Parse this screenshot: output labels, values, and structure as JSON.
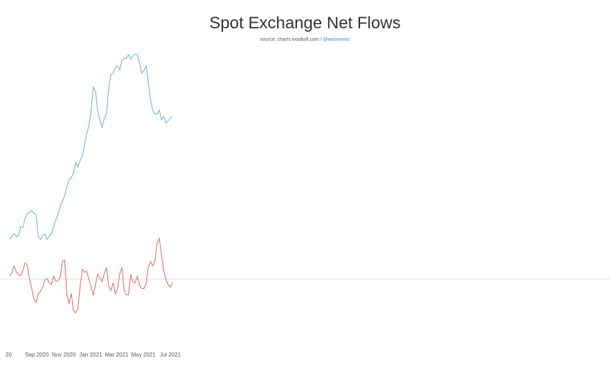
{
  "chart_data": {
    "type": "line",
    "title": "Spot Exchange Net Flows",
    "subtitle_prefix": "source: charts.woobull.com / ",
    "subtitle_handle": "@woonomic",
    "x_tick_labels": [
      "20",
      "Sep 2020",
      "Nov 2020",
      "Jan 2021",
      "Mar 2021",
      "May 2021",
      "Jul 2021"
    ],
    "x_tick_dates": [
      "2020-07-01",
      "2020-09-01",
      "2020-11-01",
      "2021-01-01",
      "2021-03-01",
      "2021-05-01",
      "2021-07-01"
    ],
    "grid": false,
    "colors": {
      "upper": "#6bb5d9",
      "lower": "#e06f5e",
      "zero_line": "#dddddd"
    },
    "series": [
      {
        "axis": "upper",
        "x": [
          "2020-07-01",
          "2020-07-06",
          "2020-07-11",
          "2020-07-16",
          "2020-07-21",
          "2020-07-26",
          "2020-07-31",
          "2020-08-05",
          "2020-08-10",
          "2020-08-15",
          "2020-08-20",
          "2020-08-25",
          "2020-08-30",
          "2020-09-04",
          "2020-09-09",
          "2020-09-14",
          "2020-09-19",
          "2020-09-24",
          "2020-09-29",
          "2020-10-04",
          "2020-10-09",
          "2020-10-14",
          "2020-10-19",
          "2020-10-24",
          "2020-10-29",
          "2020-11-03",
          "2020-11-08",
          "2020-11-13",
          "2020-11-18",
          "2020-11-23",
          "2020-11-28",
          "2020-12-03",
          "2020-12-08",
          "2020-12-13",
          "2020-12-18",
          "2020-12-23",
          "2020-12-28",
          "2021-01-02",
          "2021-01-07",
          "2021-01-12",
          "2021-01-17",
          "2021-01-22",
          "2021-01-27",
          "2021-02-01",
          "2021-02-06",
          "2021-02-11",
          "2021-02-16",
          "2021-02-21",
          "2021-02-26",
          "2021-03-03",
          "2021-03-08",
          "2021-03-13",
          "2021-03-18",
          "2021-03-23",
          "2021-03-28",
          "2021-04-02",
          "2021-04-07",
          "2021-04-12",
          "2021-04-17",
          "2021-04-22",
          "2021-04-27",
          "2021-05-02",
          "2021-05-07",
          "2021-05-12",
          "2021-05-17",
          "2021-05-22",
          "2021-05-27",
          "2021-06-01",
          "2021-06-06",
          "2021-06-11",
          "2021-06-16",
          "2021-06-21",
          "2021-06-26",
          "2021-07-01",
          "2021-07-06"
        ],
        "values": [
          2,
          5,
          6,
          4,
          5,
          12,
          13,
          20,
          24,
          26,
          26,
          24,
          23,
          3,
          2,
          5,
          6,
          3,
          5,
          7,
          14,
          18,
          23,
          30,
          33,
          39,
          46,
          52,
          55,
          58,
          67,
          64,
          68,
          72,
          82,
          90,
          98,
          110,
          130,
          128,
          110,
          103,
          97,
          103,
          108,
          128,
          140,
          142,
          146,
          148,
          146,
          153,
          155,
          155,
          157,
          154,
          156,
          157,
          158,
          150,
          142,
          145,
          148,
          135,
          120,
          110,
          108,
          107,
          110,
          103,
          105,
          100,
          103,
          104,
          106
        ]
      },
      {
        "axis": "lower",
        "x": [
          "2020-07-01",
          "2020-07-06",
          "2020-07-11",
          "2020-07-16",
          "2020-07-21",
          "2020-07-26",
          "2020-07-31",
          "2020-08-05",
          "2020-08-10",
          "2020-08-15",
          "2020-08-20",
          "2020-08-25",
          "2020-08-30",
          "2020-09-04",
          "2020-09-09",
          "2020-09-14",
          "2020-09-19",
          "2020-09-24",
          "2020-09-29",
          "2020-10-04",
          "2020-10-09",
          "2020-10-14",
          "2020-10-19",
          "2020-10-24",
          "2020-10-29",
          "2020-11-03",
          "2020-11-08",
          "2020-11-13",
          "2020-11-18",
          "2020-11-23",
          "2020-11-28",
          "2020-12-03",
          "2020-12-08",
          "2020-12-13",
          "2020-12-18",
          "2020-12-23",
          "2020-12-28",
          "2021-01-02",
          "2021-01-07",
          "2021-01-12",
          "2021-01-17",
          "2021-01-22",
          "2021-01-27",
          "2021-02-01",
          "2021-02-06",
          "2021-02-11",
          "2021-02-16",
          "2021-02-21",
          "2021-02-26",
          "2021-03-03",
          "2021-03-08",
          "2021-03-13",
          "2021-03-18",
          "2021-03-23",
          "2021-03-28",
          "2021-04-02",
          "2021-04-07",
          "2021-04-12",
          "2021-04-17",
          "2021-04-22",
          "2021-04-27",
          "2021-05-02",
          "2021-05-07",
          "2021-05-12",
          "2021-05-17",
          "2021-05-22",
          "2021-05-27",
          "2021-06-01",
          "2021-06-06",
          "2021-06-11",
          "2021-06-16",
          "2021-06-21",
          "2021-06-26",
          "2021-07-01",
          "2021-07-06"
        ],
        "values": [
          4,
          8,
          14,
          9,
          5,
          3,
          12,
          20,
          17,
          2,
          -12,
          -24,
          -28,
          -19,
          -15,
          -10,
          -2,
          2,
          -4,
          -6,
          5,
          -3,
          -2,
          3,
          20,
          23,
          -20,
          -30,
          -16,
          -38,
          -40,
          -34,
          -10,
          12,
          8,
          8,
          0,
          -10,
          -20,
          -5,
          6,
          2,
          -2,
          6,
          14,
          -9,
          -15,
          -4,
          -18,
          -12,
          8,
          14,
          -12,
          -18,
          -20,
          6,
          -4,
          -6,
          4,
          -8,
          -11,
          -10,
          -5,
          16,
          22,
          15,
          22,
          42,
          48,
          30,
          10,
          0,
          -5,
          -10,
          -3
        ]
      }
    ]
  }
}
